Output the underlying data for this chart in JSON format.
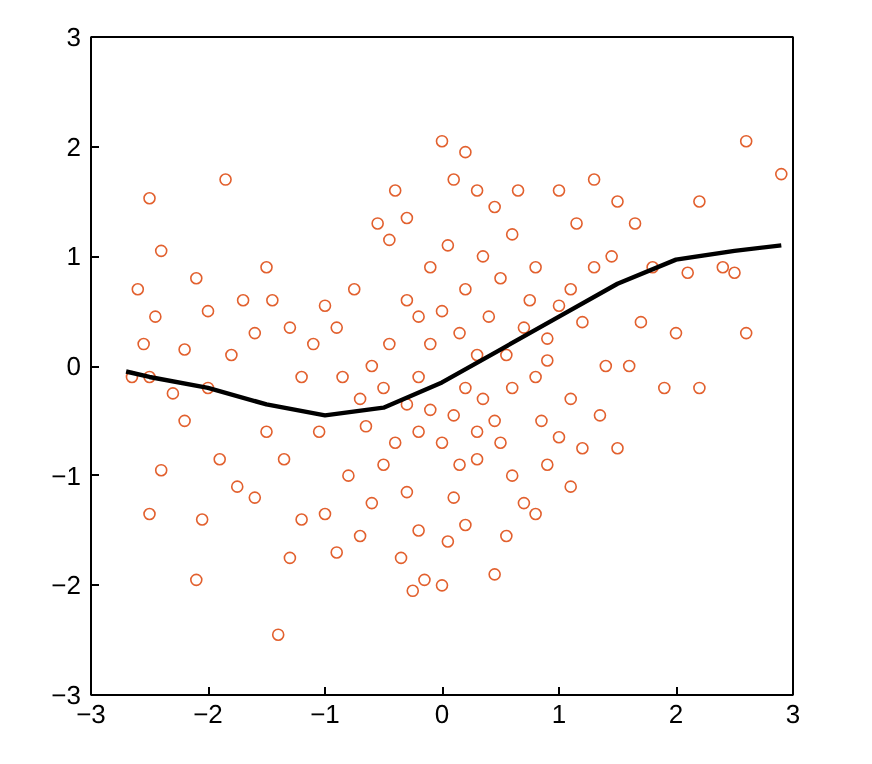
{
  "chart_data": {
    "type": "scatter",
    "xlim": [
      -3,
      3
    ],
    "ylim": [
      -3,
      3
    ],
    "xticks": [
      -3,
      -2,
      -1,
      0,
      1,
      2,
      3
    ],
    "yticks": [
      -3,
      -2,
      -1,
      0,
      1,
      2,
      3
    ],
    "grid": false,
    "marker": "circle",
    "series": [
      {
        "color": "#e2602e",
        "x": [
          -2.5,
          -2.4,
          -2.6,
          -2.45,
          -2.55,
          -2.65,
          -2.5,
          -2.2,
          -2.3,
          -2.0,
          -1.8,
          -1.85,
          -1.5,
          -1.45,
          -1.3,
          -1.7,
          -2.1,
          -2.0,
          -2.2,
          -1.1,
          -1.2,
          -0.9,
          -0.75,
          -0.55,
          -0.45,
          -0.3,
          -0.4,
          -0.6,
          -1.05,
          -1.5,
          -1.9,
          -2.4,
          -2.5,
          -2.05,
          -2.1,
          -1.75,
          -1.6,
          -1.35,
          -1.3,
          -1.2,
          -1.4,
          -1.0,
          -0.9,
          -0.7,
          -0.8,
          -0.6,
          -0.5,
          -0.65,
          -0.4,
          -0.3,
          -0.35,
          -0.2,
          -0.15,
          -0.1,
          -0.2,
          0.0,
          0.1,
          0.05,
          0.2,
          0.3,
          -0.25,
          0.0,
          0.35,
          0.5,
          0.6,
          0.7,
          0.55,
          0.45,
          0.9,
          1.0,
          0.85,
          1.2,
          1.35,
          1.5,
          0.3,
          0.15,
          0.0,
          -0.1,
          0.05,
          0.2,
          0.4,
          0.5,
          0.6,
          0.8,
          0.7,
          0.9,
          1.0,
          1.1,
          1.2,
          1.3,
          1.15,
          1.3,
          1.5,
          1.0,
          0.1,
          0.2,
          0.0,
          0.3,
          -0.3,
          0.65,
          0.45,
          1.65,
          1.8,
          2.1,
          2.2,
          2.6,
          2.9,
          2.4,
          2.5,
          2.0,
          1.6,
          2.2,
          2.6,
          1.9,
          1.4,
          1.7,
          0.8,
          0.6,
          0.2,
          -0.1,
          -0.45,
          -0.7,
          -0.85,
          -0.2,
          0.3,
          0.15,
          -0.5,
          0.55,
          0.9,
          1.1,
          -1.6,
          -1.0,
          -0.2,
          0.35,
          0.75,
          1.45,
          -0.3,
          0.1,
          0.45,
          0.8,
          1.1
        ],
        "values": [
          1.53,
          1.05,
          0.7,
          0.45,
          0.2,
          -0.1,
          -0.1,
          -0.5,
          -0.25,
          -0.2,
          0.1,
          1.7,
          0.9,
          0.6,
          0.35,
          0.6,
          0.8,
          0.5,
          0.15,
          0.2,
          -0.1,
          0.35,
          0.7,
          1.3,
          1.15,
          0.6,
          1.6,
          0.0,
          -0.6,
          -0.6,
          -0.85,
          -0.95,
          -1.35,
          -1.4,
          -1.95,
          -1.1,
          -1.2,
          -0.85,
          -1.75,
          -1.4,
          -2.45,
          -1.35,
          -1.7,
          -1.55,
          -1.0,
          -1.25,
          -0.9,
          -0.55,
          -0.7,
          -1.15,
          -1.75,
          -1.5,
          -1.95,
          -0.4,
          -0.1,
          -0.7,
          -1.2,
          -1.6,
          -1.45,
          -0.85,
          -2.05,
          -2.0,
          -0.3,
          -0.7,
          -1.0,
          -1.25,
          -1.55,
          -0.5,
          -0.9,
          -0.65,
          -0.5,
          -0.75,
          -0.45,
          -0.75,
          0.1,
          0.3,
          0.5,
          0.9,
          1.1,
          0.7,
          0.45,
          0.8,
          1.2,
          0.9,
          0.35,
          0.25,
          0.55,
          0.7,
          0.4,
          0.9,
          1.3,
          1.7,
          1.5,
          1.6,
          1.7,
          1.95,
          2.05,
          1.6,
          1.35,
          1.6,
          1.45,
          1.3,
          0.9,
          0.85,
          1.5,
          2.05,
          1.75,
          0.9,
          0.85,
          0.3,
          0.0,
          -0.2,
          0.3,
          -0.2,
          0.0,
          0.4,
          -0.1,
          -0.2,
          -0.2,
          0.2,
          0.2,
          -0.3,
          -0.1,
          -0.6,
          -0.6,
          -0.9,
          -0.2,
          0.1,
          0.05,
          -0.3,
          0.3,
          0.55,
          0.45,
          1.0,
          0.6,
          1.0,
          -0.35,
          -0.45,
          -1.9,
          -1.35,
          -1.1
        ]
      },
      {
        "type": "line",
        "color": "#000000",
        "marker": "none",
        "line_style": "solid",
        "x": [
          -2.7,
          -2.5,
          -2.0,
          -1.5,
          -1.0,
          -0.5,
          0.0,
          0.5,
          1.0,
          1.5,
          2.0,
          2.5,
          2.9
        ],
        "values": [
          -0.05,
          -0.1,
          -0.2,
          -0.35,
          -0.45,
          -0.38,
          -0.15,
          0.15,
          0.45,
          0.75,
          0.97,
          1.05,
          1.1
        ]
      }
    ]
  }
}
